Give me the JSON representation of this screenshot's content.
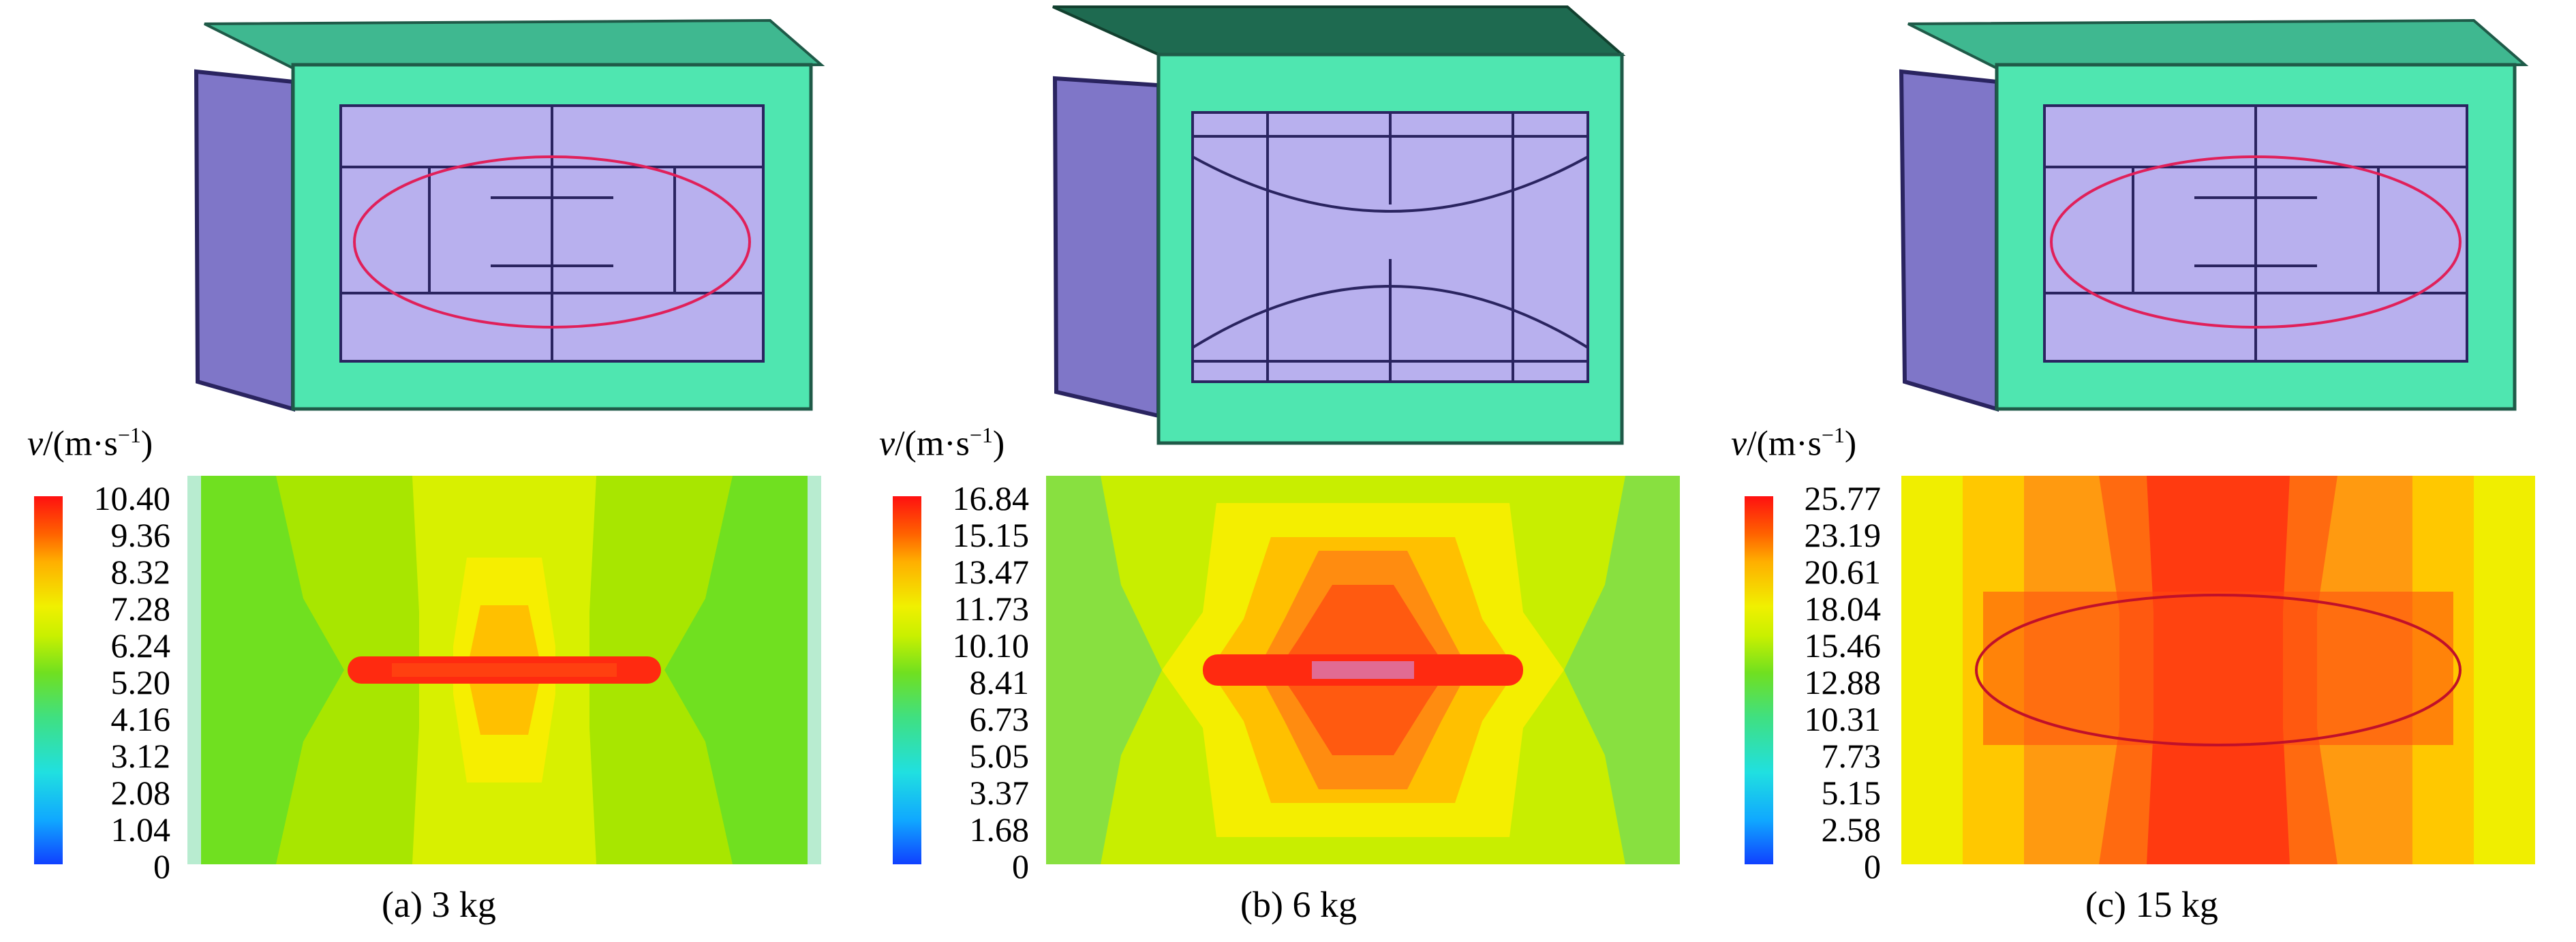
{
  "panels": [
    {
      "unit_symbol": "v",
      "unit_text": "/(m·s",
      "unit_exp": "−1",
      "unit_close": ")",
      "ticks": [
        "10.40",
        "9.36",
        "8.32",
        "7.28",
        "6.24",
        "5.20",
        "4.16",
        "3.12",
        "2.08",
        "1.04",
        "0"
      ],
      "caption": "(a) 3 kg"
    },
    {
      "unit_symbol": "v",
      "unit_text": "/(m·s",
      "unit_exp": "−1",
      "unit_close": ")",
      "ticks": [
        "16.84",
        "15.15",
        "13.47",
        "11.73",
        "10.10",
        "8.41",
        "6.73",
        "5.05",
        "3.37",
        "1.68",
        "0"
      ],
      "caption": "(b) 6 kg"
    },
    {
      "unit_symbol": "v",
      "unit_text": "/(m·s",
      "unit_exp": "−1",
      "unit_close": ")",
      "ticks": [
        "25.77",
        "23.19",
        "20.61",
        "18.04",
        "15.46",
        "12.88",
        "10.31",
        "7.73",
        "5.15",
        "2.58",
        "0"
      ],
      "caption": "(c) 15 kg"
    }
  ],
  "colors": {
    "frame": "#4fe6b0",
    "panel_fill": "#b8b0ee",
    "highlight_ellipse": "#e0205a",
    "colormap_max": "#ff1010",
    "colormap_min": "#1040ff"
  }
}
